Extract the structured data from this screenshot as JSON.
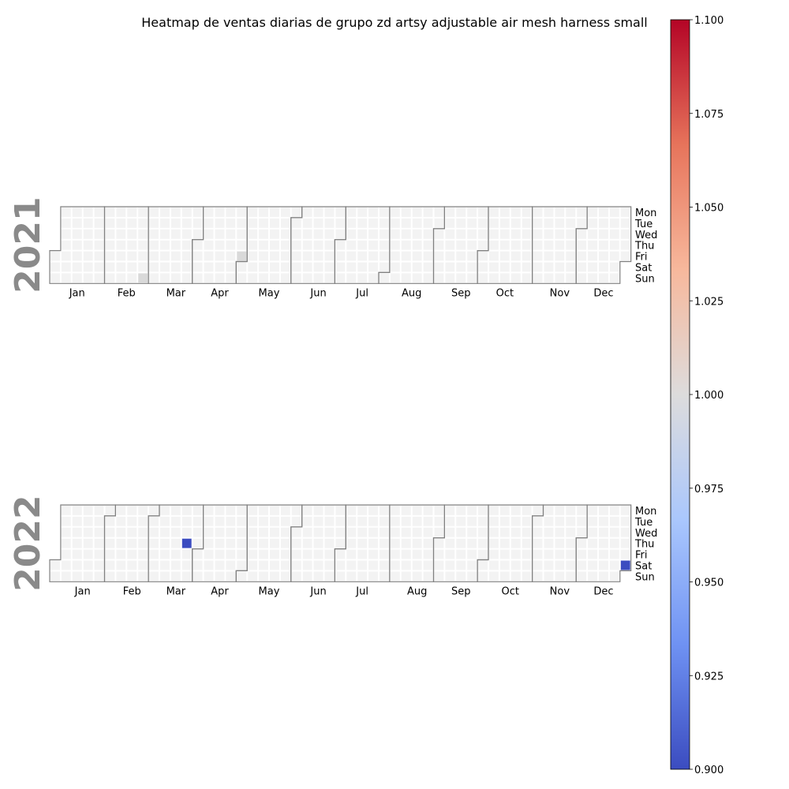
{
  "chart_data": {
    "type": "heatmap",
    "title": "Heatmap de ventas diarias de grupo zd artsy adjustable air mesh harness small",
    "years": [
      2021,
      2022
    ],
    "months": [
      "Jan",
      "Feb",
      "Mar",
      "Apr",
      "May",
      "Jun",
      "Jul",
      "Aug",
      "Sep",
      "Oct",
      "Nov",
      "Dec"
    ],
    "weekdays": [
      "Mon",
      "Tue",
      "Wed",
      "Thu",
      "Fri",
      "Sat",
      "Sun"
    ],
    "colorbar": {
      "range": [
        0.9,
        1.1
      ],
      "ticks": [
        "0.900",
        "0.925",
        "0.950",
        "0.975",
        "1.000",
        "1.025",
        "1.050",
        "1.075",
        "1.100"
      ],
      "colormap": "coolwarm",
      "colors": [
        "#3b4cc0",
        "#6f92f3",
        "#aac7fd",
        "#dddcdc",
        "#f7b89c",
        "#e7745b",
        "#b40426"
      ]
    },
    "empty_cell_color": "#f3f3f3",
    "missing_data_color": "#d9d9d9",
    "values": [
      {
        "date": "2022-03-24",
        "value": 0.9
      },
      {
        "date": "2022-12-31",
        "value": 0.9
      }
    ],
    "missing_marks": [
      {
        "date": "2021-02-28"
      },
      {
        "date": "2021-04-30"
      }
    ]
  }
}
